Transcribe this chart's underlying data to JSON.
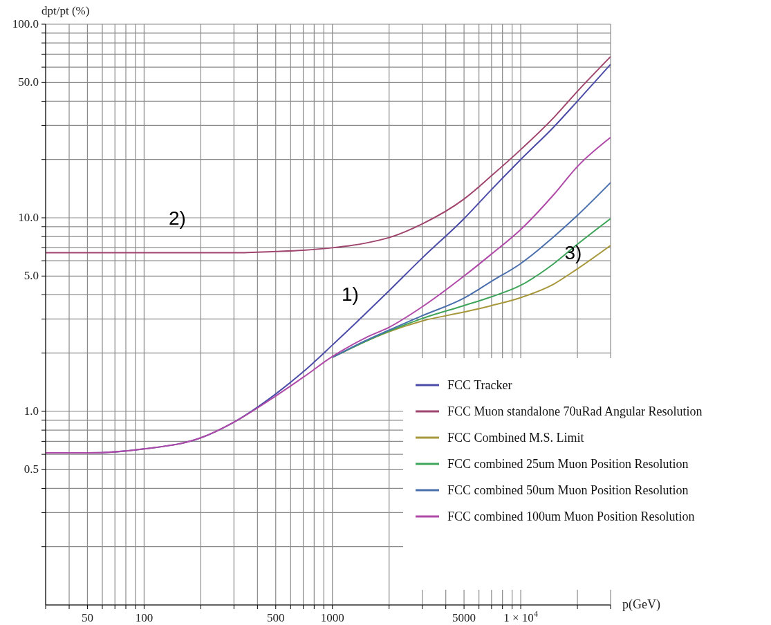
{
  "chart_data": {
    "type": "line",
    "xlabel": "p(GeV)",
    "ylabel": "dpt/pt (%)",
    "log": "xy",
    "grid": true,
    "legend": "bottom right",
    "x": [
      30,
      50,
      100,
      200,
      300,
      500,
      700,
      1000,
      1500,
      2000,
      3000,
      5000,
      7000,
      10000,
      15000,
      20000,
      30000
    ],
    "xlim": [
      30,
      30000
    ],
    "ylim": [
      0.1,
      100
    ],
    "xticks": [
      {
        "value": 30,
        "label": null
      },
      {
        "value": 40,
        "label": null
      },
      50,
      {
        "value": 60,
        "label": null
      },
      {
        "value": 70,
        "label": null
      },
      {
        "value": 80,
        "label": null
      },
      {
        "value": 90,
        "label": null
      },
      100,
      {
        "value": 200,
        "label": null
      },
      {
        "value": 300,
        "label": null
      },
      {
        "value": 400,
        "label": null
      },
      500,
      {
        "value": 600,
        "label": null
      },
      {
        "value": 700,
        "label": null
      },
      {
        "value": 800,
        "label": null
      },
      {
        "value": 900,
        "label": null
      },
      1000,
      {
        "value": 2000,
        "label": null
      },
      {
        "value": 3000,
        "label": null
      },
      {
        "value": 4000,
        "label": null
      },
      5000,
      {
        "value": 6000,
        "label": null
      },
      {
        "value": 7000,
        "label": null
      },
      {
        "value": 8000,
        "label": null
      },
      {
        "value": 9000,
        "label": null
      },
      {
        "value": 10000,
        "label": "1 × 10$^{4}$"
      },
      {
        "value": 20000,
        "label": null
      },
      {
        "value": 30000,
        "label": null
      }
    ],
    "yticks": [
      {
        "value": 0.2,
        "label": null
      },
      {
        "value": 0.3,
        "label": null
      },
      {
        "value": 0.4,
        "label": null
      },
      0.5,
      {
        "value": 0.6,
        "label": null
      },
      {
        "value": 0.7,
        "label": null
      },
      {
        "value": 0.8,
        "label": null
      },
      {
        "value": 0.9,
        "label": null
      },
      {
        "value": 1,
        "label": "1.0"
      },
      {
        "value": 2,
        "label": null
      },
      {
        "value": 3,
        "label": null
      },
      {
        "value": 4,
        "label": null
      },
      {
        "value": 5,
        "label": "5.0"
      },
      {
        "value": 6,
        "label": null
      },
      {
        "value": 7,
        "label": null
      },
      {
        "value": 8,
        "label": null
      },
      {
        "value": 9,
        "label": null
      },
      {
        "value": 10,
        "label": "10.0"
      },
      {
        "value": 20,
        "label": null
      },
      {
        "value": 30,
        "label": null
      },
      {
        "value": 40,
        "label": null
      },
      {
        "value": 50,
        "label": "50.0"
      },
      {
        "value": 60,
        "label": null
      },
      {
        "value": 70,
        "label": null
      },
      {
        "value": 80,
        "label": null
      },
      {
        "value": 90,
        "label": null
      },
      {
        "value": 100,
        "label": "100.0"
      }
    ],
    "series": [
      {
        "name": "FCC Tracker",
        "color": "#4b4ba8",
        "values": [
          0.61,
          0.61,
          0.64,
          0.73,
          0.88,
          1.23,
          1.6,
          2.2,
          3.2,
          4.2,
          6.2,
          9.9,
          14,
          20,
          29.5,
          40,
          62
        ]
      },
      {
        "name": "FCC Muon standalone 70uRad Angular Resolution",
        "color": "#a0456e",
        "values": [
          6.6,
          6.6,
          6.6,
          6.6,
          6.6,
          6.7,
          6.8,
          7,
          7.4,
          7.9,
          9.3,
          12.5,
          16.5,
          22.5,
          33,
          45,
          68
        ]
      },
      {
        "name": "FCC Combined M.S. Limit",
        "color": "#a8983c",
        "values": [
          null,
          null,
          null,
          null,
          null,
          null,
          null,
          1.9,
          2.3,
          2.58,
          2.93,
          3.26,
          3.52,
          3.87,
          4.55,
          5.45,
          7.2
        ]
      },
      {
        "name": "FCC combined 25um Muon Position Resolution",
        "color": "#3fa55a",
        "values": [
          null,
          null,
          null,
          null,
          null,
          null,
          null,
          1.9,
          2.3,
          2.6,
          3.02,
          3.52,
          3.91,
          4.48,
          5.8,
          7.3,
          9.9
        ]
      },
      {
        "name": "FCC combined 50um Muon Position Resolution",
        "color": "#4a6fad",
        "values": [
          null,
          null,
          null,
          null,
          null,
          null,
          null,
          1.9,
          2.32,
          2.63,
          3.12,
          3.85,
          4.7,
          5.8,
          8,
          10.3,
          15.2
        ]
      },
      {
        "name": "FCC combined 100um Muon Position Resolution",
        "color": "#b04aa8",
        "values": [
          0.61,
          0.61,
          0.64,
          0.73,
          0.88,
          1.2,
          1.5,
          1.92,
          2.4,
          2.72,
          3.47,
          5,
          6.5,
          8.7,
          13.2,
          18.4,
          26
        ]
      }
    ],
    "annotations": [
      "1)",
      "2)",
      {
        "text": "3)",
        "x": 19000,
        "y": 6.6
      }
    ]
  }
}
